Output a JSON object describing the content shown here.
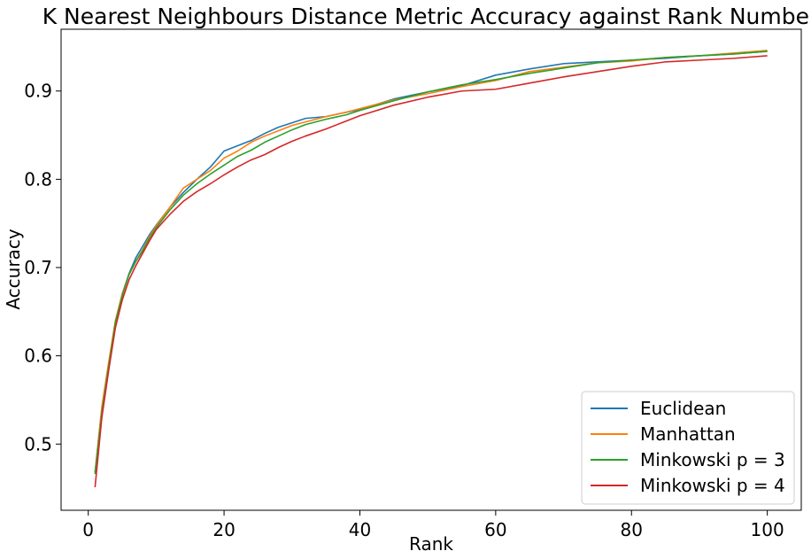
{
  "chart_data": {
    "type": "line",
    "title": "K Nearest Neighbours Distance Metric Accuracy against Rank Number",
    "xlabel": "Rank",
    "ylabel": "Accuracy",
    "xlim": [
      -4,
      105
    ],
    "ylim": [
      0.425,
      0.97
    ],
    "xticks": [
      0,
      20,
      40,
      60,
      80,
      100
    ],
    "yticks": [
      0.5,
      0.6,
      0.7,
      0.8,
      0.9
    ],
    "grid": false,
    "legend_position": "bottom-right",
    "series": [
      {
        "name": "Euclidean",
        "color": "#1f77b4",
        "points": [
          [
            1,
            0.468
          ],
          [
            2,
            0.54
          ],
          [
            3,
            0.59
          ],
          [
            4,
            0.638
          ],
          [
            5,
            0.67
          ],
          [
            6,
            0.693
          ],
          [
            7,
            0.711
          ],
          [
            8,
            0.724
          ],
          [
            9,
            0.737
          ],
          [
            10,
            0.748
          ],
          [
            12,
            0.768
          ],
          [
            14,
            0.785
          ],
          [
            16,
            0.8
          ],
          [
            18,
            0.814
          ],
          [
            20,
            0.832
          ],
          [
            22,
            0.838
          ],
          [
            24,
            0.844
          ],
          [
            26,
            0.852
          ],
          [
            28,
            0.859
          ],
          [
            30,
            0.864
          ],
          [
            32,
            0.869
          ],
          [
            35,
            0.871
          ],
          [
            38,
            0.876
          ],
          [
            40,
            0.879
          ],
          [
            45,
            0.891
          ],
          [
            50,
            0.899
          ],
          [
            55,
            0.906
          ],
          [
            60,
            0.918
          ],
          [
            65,
            0.925
          ],
          [
            70,
            0.931
          ],
          [
            75,
            0.933
          ],
          [
            80,
            0.935
          ],
          [
            85,
            0.937
          ],
          [
            90,
            0.94
          ],
          [
            95,
            0.942
          ],
          [
            100,
            0.945
          ]
        ]
      },
      {
        "name": "Manhattan",
        "color": "#ff7f0e",
        "points": [
          [
            1,
            0.468
          ],
          [
            2,
            0.542
          ],
          [
            3,
            0.592
          ],
          [
            4,
            0.64
          ],
          [
            5,
            0.67
          ],
          [
            6,
            0.692
          ],
          [
            7,
            0.707
          ],
          [
            8,
            0.72
          ],
          [
            9,
            0.735
          ],
          [
            10,
            0.747
          ],
          [
            12,
            0.768
          ],
          [
            14,
            0.79
          ],
          [
            16,
            0.8
          ],
          [
            18,
            0.81
          ],
          [
            20,
            0.824
          ],
          [
            22,
            0.832
          ],
          [
            24,
            0.842
          ],
          [
            26,
            0.849
          ],
          [
            28,
            0.855
          ],
          [
            30,
            0.861
          ],
          [
            32,
            0.865
          ],
          [
            35,
            0.871
          ],
          [
            38,
            0.876
          ],
          [
            40,
            0.88
          ],
          [
            45,
            0.89
          ],
          [
            50,
            0.897
          ],
          [
            55,
            0.905
          ],
          [
            60,
            0.912
          ],
          [
            65,
            0.922
          ],
          [
            70,
            0.927
          ],
          [
            75,
            0.932
          ],
          [
            80,
            0.934
          ],
          [
            85,
            0.938
          ],
          [
            90,
            0.94
          ],
          [
            95,
            0.943
          ],
          [
            100,
            0.946
          ]
        ]
      },
      {
        "name": "Minkowski p = 3",
        "color": "#2ca02c",
        "points": [
          [
            1,
            0.466
          ],
          [
            2,
            0.536
          ],
          [
            3,
            0.588
          ],
          [
            4,
            0.638
          ],
          [
            5,
            0.668
          ],
          [
            6,
            0.692
          ],
          [
            7,
            0.707
          ],
          [
            8,
            0.719
          ],
          [
            9,
            0.733
          ],
          [
            10,
            0.745
          ],
          [
            12,
            0.765
          ],
          [
            14,
            0.782
          ],
          [
            16,
            0.795
          ],
          [
            18,
            0.806
          ],
          [
            20,
            0.816
          ],
          [
            22,
            0.826
          ],
          [
            24,
            0.833
          ],
          [
            26,
            0.842
          ],
          [
            28,
            0.849
          ],
          [
            30,
            0.856
          ],
          [
            32,
            0.862
          ],
          [
            35,
            0.868
          ],
          [
            38,
            0.873
          ],
          [
            40,
            0.878
          ],
          [
            45,
            0.889
          ],
          [
            50,
            0.899
          ],
          [
            55,
            0.907
          ],
          [
            60,
            0.913
          ],
          [
            65,
            0.92
          ],
          [
            70,
            0.926
          ],
          [
            75,
            0.932
          ],
          [
            80,
            0.935
          ],
          [
            85,
            0.938
          ],
          [
            90,
            0.94
          ],
          [
            95,
            0.942
          ],
          [
            100,
            0.945
          ]
        ]
      },
      {
        "name": "Minkowski p = 4",
        "color": "#d62728",
        "points": [
          [
            1,
            0.451
          ],
          [
            2,
            0.53
          ],
          [
            3,
            0.583
          ],
          [
            4,
            0.632
          ],
          [
            5,
            0.663
          ],
          [
            6,
            0.686
          ],
          [
            7,
            0.702
          ],
          [
            8,
            0.716
          ],
          [
            9,
            0.73
          ],
          [
            10,
            0.743
          ],
          [
            12,
            0.76
          ],
          [
            14,
            0.775
          ],
          [
            16,
            0.786
          ],
          [
            18,
            0.795
          ],
          [
            20,
            0.805
          ],
          [
            22,
            0.814
          ],
          [
            24,
            0.822
          ],
          [
            26,
            0.828
          ],
          [
            28,
            0.836
          ],
          [
            30,
            0.843
          ],
          [
            32,
            0.849
          ],
          [
            35,
            0.857
          ],
          [
            38,
            0.866
          ],
          [
            40,
            0.872
          ],
          [
            45,
            0.884
          ],
          [
            50,
            0.893
          ],
          [
            55,
            0.9
          ],
          [
            60,
            0.902
          ],
          [
            65,
            0.909
          ],
          [
            70,
            0.916
          ],
          [
            75,
            0.922
          ],
          [
            80,
            0.928
          ],
          [
            85,
            0.933
          ],
          [
            90,
            0.935
          ],
          [
            95,
            0.937
          ],
          [
            100,
            0.94
          ]
        ]
      }
    ]
  }
}
